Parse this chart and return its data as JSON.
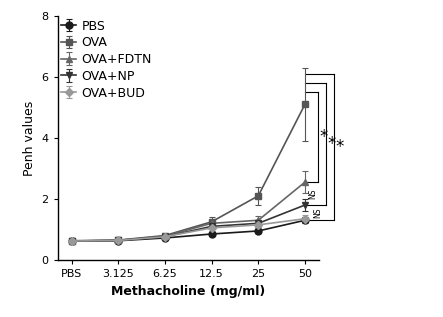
{
  "x_labels": [
    "PBS",
    "3.125",
    "6.25",
    "12.5",
    "25",
    "50"
  ],
  "x_positions": [
    0,
    1,
    2,
    3,
    4,
    5
  ],
  "series": [
    {
      "label": "PBS",
      "color": "#1a1a1a",
      "marker": "o",
      "markersize": 5,
      "values": [
        0.62,
        0.63,
        0.72,
        0.85,
        0.95,
        1.3
      ],
      "errors": [
        0.05,
        0.05,
        0.06,
        0.07,
        0.08,
        0.1
      ]
    },
    {
      "label": "OVA",
      "color": "#555555",
      "marker": "s",
      "markersize": 5,
      "values": [
        0.63,
        0.65,
        0.8,
        1.25,
        2.1,
        5.1
      ],
      "errors": [
        0.06,
        0.06,
        0.08,
        0.15,
        0.3,
        1.2
      ]
    },
    {
      "label": "OVA+FDTN",
      "color": "#666666",
      "marker": "^",
      "markersize": 5,
      "values": [
        0.62,
        0.64,
        0.78,
        1.2,
        1.3,
        2.55
      ],
      "errors": [
        0.05,
        0.05,
        0.07,
        0.12,
        0.15,
        0.35
      ]
    },
    {
      "label": "OVA+NP",
      "color": "#333333",
      "marker": "v",
      "markersize": 5,
      "values": [
        0.62,
        0.64,
        0.76,
        1.1,
        1.2,
        1.8
      ],
      "errors": [
        0.05,
        0.05,
        0.07,
        0.1,
        0.12,
        0.2
      ]
    },
    {
      "label": "OVA+BUD",
      "color": "#999999",
      "marker": "D",
      "markersize": 4,
      "values": [
        0.62,
        0.64,
        0.76,
        1.05,
        1.15,
        1.35
      ],
      "errors": [
        0.05,
        0.05,
        0.07,
        0.09,
        0.1,
        0.12
      ]
    }
  ],
  "ylabel": "Penh values",
  "xlabel": "Methacholine (mg/ml)",
  "ylim": [
    0,
    8
  ],
  "yticks": [
    0,
    2,
    4,
    6,
    8
  ],
  "figsize": [
    4.43,
    3.17
  ],
  "dpi": 100,
  "background_color": "#ffffff"
}
